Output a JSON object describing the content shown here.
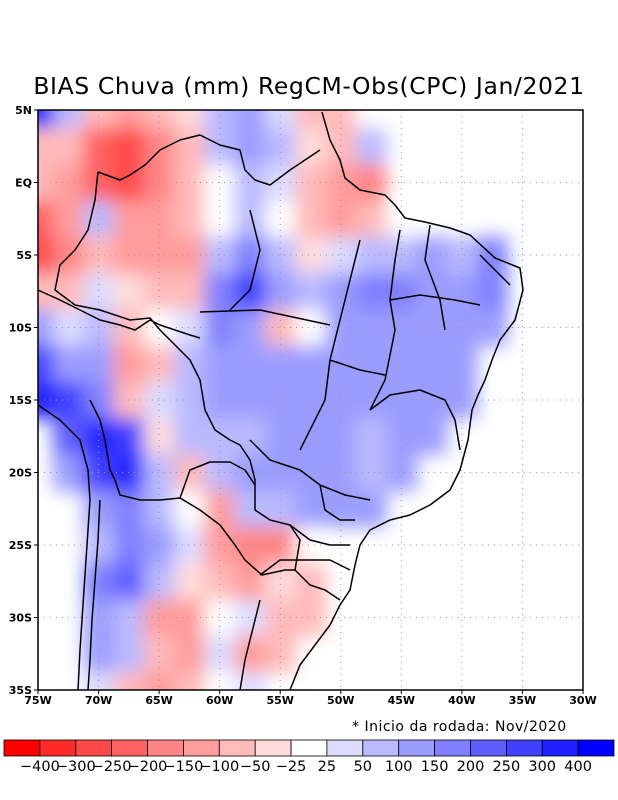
{
  "chart_data": {
    "type": "heatmap",
    "title": "BIAS Chuva (mm) RegCM-Obs(CPC) Jan/2021",
    "xlabel": "",
    "ylabel": "",
    "x_ticks": [
      "75W",
      "70W",
      "65W",
      "60W",
      "55W",
      "50W",
      "45W",
      "40W",
      "35W",
      "30W"
    ],
    "y_ticks": [
      "5N",
      "EQ",
      "5S",
      "10S",
      "15S",
      "20S",
      "25S",
      "30S",
      "35S"
    ],
    "xlim": [
      -75,
      -30
    ],
    "ylim": [
      -35,
      5
    ],
    "grid": true,
    "note": "* Inicio da rodada: Nov/2020",
    "colorbar": {
      "placement": "bottom",
      "labels": [
        "-400",
        "-300",
        "-250",
        "-200",
        "-150",
        "-100",
        "-50",
        "-25",
        "25",
        "50",
        "100",
        "150",
        "200",
        "250",
        "300",
        "400"
      ],
      "colors": [
        "#ff0000",
        "#ff2b2b",
        "#ff4848",
        "#ff6060",
        "#ff8585",
        "#ff9c9c",
        "#ffbaba",
        "#ffdcdc",
        "#ffffff",
        "#dcdcff",
        "#babaff",
        "#9c9cff",
        "#8080ff",
        "#5e5eff",
        "#4040ff",
        "#2020ff",
        "#0000ff"
      ]
    },
    "grid_lon": [
      -75,
      -72.5,
      -70,
      -67.5,
      -65,
      -62.5,
      -60,
      -57.5,
      -55,
      -52.5,
      -50,
      -47.5,
      -45,
      -42.5,
      -40,
      -37.5,
      -35,
      -32.5
    ],
    "grid_lat": [
      5,
      2.5,
      0,
      -2.5,
      -5,
      -7.5,
      -10,
      -12.5,
      -15,
      -17.5,
      -20,
      -22.5,
      -25,
      -27.5,
      -30,
      -32.5,
      -35
    ],
    "values": [
      [
        400,
        60,
        -80,
        -150,
        -100,
        -40,
        60,
        100,
        40,
        -60,
        -80,
        20,
        null,
        null,
        null,
        null,
        null,
        null
      ],
      [
        -60,
        -80,
        -220,
        -280,
        -180,
        -80,
        80,
        120,
        60,
        -40,
        -60,
        60,
        null,
        null,
        null,
        null,
        null,
        null
      ],
      [
        -80,
        -120,
        -250,
        -260,
        -160,
        -100,
        20,
        80,
        40,
        -80,
        -120,
        -200,
        null,
        null,
        null,
        null,
        null,
        null
      ],
      [
        -250,
        -120,
        60,
        -120,
        -120,
        -80,
        -20,
        60,
        10,
        -60,
        -150,
        -80,
        0,
        null,
        null,
        null,
        null,
        null
      ],
      [
        -280,
        -180,
        -60,
        -130,
        -120,
        -130,
        80,
        150,
        80,
        -50,
        40,
        80,
        80,
        100,
        90,
        150,
        null,
        null
      ],
      [
        -60,
        -100,
        40,
        -50,
        -80,
        -80,
        180,
        260,
        100,
        60,
        100,
        150,
        160,
        120,
        130,
        180,
        null,
        null
      ],
      [
        120,
        40,
        80,
        -60,
        -20,
        30,
        150,
        120,
        -60,
        20,
        130,
        130,
        140,
        100,
        130,
        130,
        null,
        null
      ],
      [
        260,
        100,
        120,
        -120,
        -60,
        60,
        110,
        130,
        120,
        100,
        110,
        120,
        130,
        120,
        110,
        null,
        null,
        null
      ],
      [
        300,
        280,
        180,
        -80,
        30,
        80,
        100,
        110,
        100,
        110,
        130,
        120,
        120,
        110,
        100,
        null,
        null,
        null
      ],
      [
        null,
        200,
        320,
        250,
        -40,
        60,
        90,
        80,
        100,
        110,
        120,
        90,
        100,
        120,
        null,
        null,
        null,
        null
      ],
      [
        null,
        100,
        250,
        300,
        80,
        -80,
        60,
        110,
        120,
        110,
        120,
        90,
        100,
        null,
        null,
        null,
        null,
        null
      ],
      [
        null,
        null,
        120,
        160,
        60,
        10,
        -120,
        60,
        90,
        110,
        100,
        110,
        null,
        null,
        null,
        null,
        null,
        null
      ],
      [
        null,
        null,
        80,
        180,
        120,
        40,
        -120,
        -180,
        -160,
        0,
        null,
        null,
        null,
        null,
        null,
        null,
        null,
        null
      ],
      [
        null,
        null,
        160,
        200,
        80,
        -40,
        -60,
        -140,
        -40,
        -80,
        null,
        null,
        null,
        null,
        null,
        null,
        null,
        null
      ],
      [
        null,
        null,
        130,
        90,
        -120,
        -140,
        -20,
        40,
        -80,
        -60,
        null,
        null,
        null,
        null,
        null,
        null,
        null,
        null
      ],
      [
        null,
        null,
        120,
        60,
        -100,
        -120,
        40,
        -120,
        -60,
        null,
        null,
        null,
        null,
        null,
        null,
        null,
        null,
        null
      ],
      [
        null,
        null,
        40,
        -60,
        -140,
        -60,
        0,
        40,
        null,
        null,
        null,
        null,
        null,
        null,
        null,
        null,
        null,
        null
      ]
    ]
  }
}
